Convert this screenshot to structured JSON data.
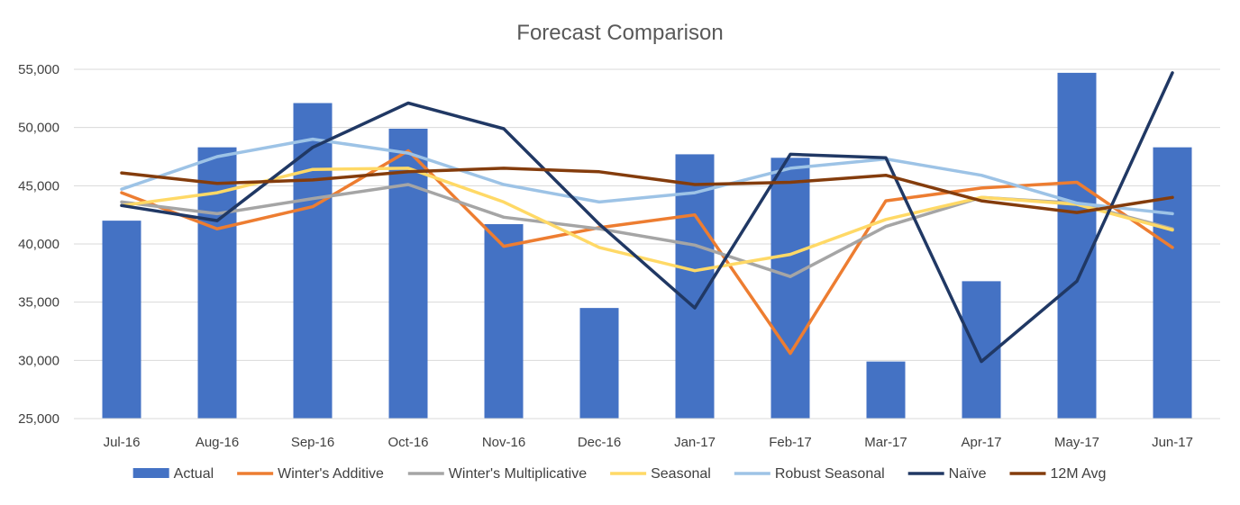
{
  "chart_data": {
    "type": "bar",
    "title": "Forecast Comparison",
    "xlabel": "",
    "ylabel": "",
    "ylim": [
      25000,
      55000
    ],
    "y_ticks": [
      25000,
      30000,
      35000,
      40000,
      45000,
      50000,
      55000
    ],
    "y_tick_labels": [
      "25,000",
      "30,000",
      "35,000",
      "40,000",
      "45,000",
      "50,000",
      "55,000"
    ],
    "grid": true,
    "legend_position": "bottom",
    "categories": [
      "Jul-16",
      "Aug-16",
      "Sep-16",
      "Oct-16",
      "Nov-16",
      "Dec-16",
      "Jan-17",
      "Feb-17",
      "Mar-17",
      "Apr-17",
      "May-17",
      "Jun-17"
    ],
    "series": [
      {
        "name": "Actual",
        "kind": "bar",
        "color": "#4472c4",
        "values": [
          42000,
          48300,
          52100,
          49900,
          41700,
          34500,
          47700,
          47400,
          29900,
          36800,
          54700,
          48300
        ]
      },
      {
        "name": "Winter's Additive",
        "kind": "line",
        "color": "#ed7d31",
        "values": [
          44400,
          41300,
          43200,
          48000,
          39800,
          41400,
          42500,
          30600,
          43700,
          44800,
          45300,
          39700
        ]
      },
      {
        "name": "Winter's Multiplicative",
        "kind": "line",
        "color": "#a5a5a5",
        "values": [
          43600,
          42600,
          43900,
          45100,
          42300,
          41300,
          39900,
          37200,
          41500,
          44000,
          43500,
          41300
        ]
      },
      {
        "name": "Seasonal",
        "kind": "line",
        "color": "#ffd966",
        "values": [
          43300,
          44400,
          46400,
          46500,
          43600,
          39700,
          37700,
          39100,
          42100,
          44000,
          43400,
          41200
        ]
      },
      {
        "name": "Robust Seasonal",
        "kind": "line",
        "color": "#9dc3e6",
        "values": [
          44700,
          47500,
          49000,
          47800,
          45100,
          43600,
          44400,
          46500,
          47300,
          45900,
          43500,
          42600
        ]
      },
      {
        "name": "Naïve",
        "kind": "line",
        "color": "#203864",
        "values": [
          43300,
          42000,
          48300,
          52100,
          49900,
          41700,
          34500,
          47700,
          47400,
          29900,
          36800,
          54700
        ]
      },
      {
        "name": "12M Avg",
        "kind": "line",
        "color": "#843c0c",
        "values": [
          46100,
          45200,
          45500,
          46200,
          46500,
          46200,
          45100,
          45300,
          45900,
          43700,
          42700,
          44000
        ]
      }
    ]
  }
}
